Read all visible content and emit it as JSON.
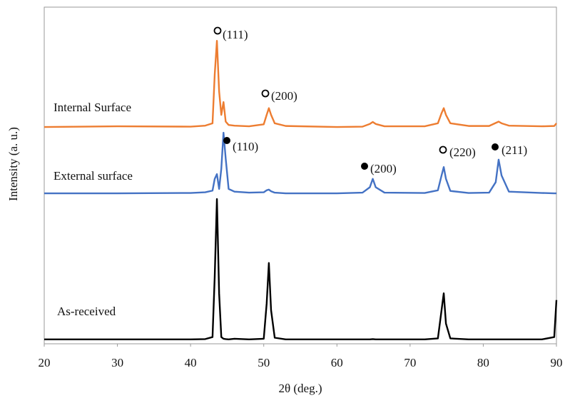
{
  "chart_data": {
    "type": "line",
    "xlabel": "2θ (deg.)",
    "ylabel": "Intensity (a. u.)",
    "xlim": [
      20,
      90
    ],
    "xticks": [
      20,
      30,
      40,
      50,
      60,
      70,
      80,
      90
    ],
    "ylim": [
      0,
      100
    ],
    "x": [
      20,
      30,
      40,
      42,
      43,
      43.3,
      43.6,
      43.9,
      44.2,
      44.5,
      44.8,
      45.2,
      46,
      48,
      50,
      50.4,
      50.7,
      51,
      51.5,
      53,
      60,
      63.5,
      64.5,
      64.9,
      65.3,
      66.5,
      72,
      73.8,
      74.3,
      74.6,
      74.9,
      75.5,
      78,
      80.8,
      81.7,
      82.1,
      82.5,
      83.5,
      88,
      89.7,
      90
    ],
    "series": [
      {
        "name": "Internal Surface",
        "color": "#ed7d31",
        "values": [
          64.4,
          64.6,
          64.5,
          64.8,
          65.5,
          80,
          90,
          75,
          68,
          71.8,
          66,
          65,
          64.8,
          64.6,
          65.2,
          68,
          70,
          68,
          65.5,
          64.7,
          64.4,
          64.5,
          65.3,
          65.9,
          65.3,
          64.6,
          64.6,
          65.5,
          68.5,
          70,
          68,
          65.5,
          64.7,
          64.7,
          65.6,
          66,
          65.5,
          64.8,
          64.6,
          64.7,
          65.5
        ]
      },
      {
        "name": "External surface",
        "color": "#4472c4",
        "values": [
          44.7,
          44.7,
          44.8,
          45,
          45.5,
          49,
          50.4,
          46,
          52,
          62.7,
          55,
          46,
          45.2,
          44.9,
          45,
          45.6,
          45.8,
          45.3,
          44.9,
          44.7,
          44.7,
          44.9,
          46.5,
          49,
          46.5,
          44.9,
          44.8,
          45.6,
          50,
          52.5,
          49,
          45.4,
          44.8,
          44.9,
          48,
          54.7,
          50,
          45.2,
          44.8,
          44.7,
          44.7
        ]
      },
      {
        "name": "As-received",
        "color": "#000000",
        "values": [
          1.3,
          1.3,
          1.3,
          1.4,
          2,
          20,
          43,
          15,
          2,
          1.5,
          1.4,
          1.3,
          1.5,
          1.3,
          1.5,
          12,
          24,
          10,
          1.8,
          1.3,
          1.3,
          1.3,
          1.3,
          1.4,
          1.3,
          1.3,
          1.3,
          1.6,
          10,
          15,
          6,
          1.6,
          1.3,
          1.3,
          1.3,
          1.3,
          1.3,
          1.3,
          1.3,
          2,
          13
        ]
      }
    ],
    "annotations": [
      {
        "text": "(111)",
        "marker": "open"
      },
      {
        "text": "(200)",
        "marker": "open"
      },
      {
        "text": "(110)",
        "marker": "filled"
      },
      {
        "text": "(200)",
        "marker": "filled"
      },
      {
        "text": "(220)",
        "marker": "open"
      },
      {
        "text": "(211)",
        "marker": "filled"
      }
    ]
  }
}
